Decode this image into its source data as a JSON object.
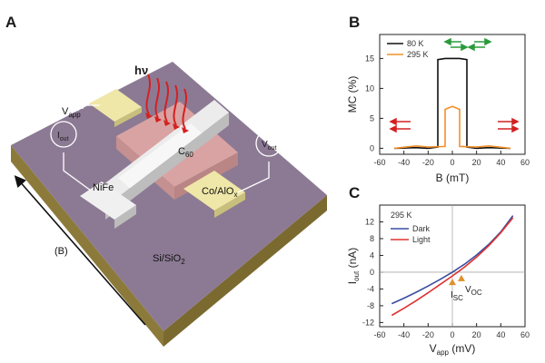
{
  "panels": {
    "a": {
      "letter": "A",
      "hv": "hν",
      "v_app": "V",
      "v_app_sub": "app",
      "i_out": "I",
      "i_out_sub": "out",
      "v_out": "V",
      "v_out_sub": "out",
      "c60": "C",
      "c60_sub": "60",
      "nife": "NiFe",
      "coalox": "Co/AlO",
      "coalox_sub": "x",
      "field": "(B)",
      "substrate": "Si/SiO",
      "substrate_sub": "2"
    },
    "b": {
      "letter": "B"
    },
    "c": {
      "letter": "C"
    }
  },
  "colors": {
    "substrate_top": "#8c7a94",
    "substrate_side": "#8c7a3a",
    "c60": "#d9a3a3",
    "pads": "#efe7a8",
    "nife": "#e6e6e6",
    "light_arrows": "#d42020",
    "black_series": "#111111",
    "orange_series": "#f0902a",
    "dark_series": "#3a4ea0",
    "light_series": "#e03030",
    "green_arrows": "#2a9a3a"
  },
  "chart_data": [
    {
      "type": "line",
      "panel": "B",
      "xlabel": "B (mT)",
      "ylabel": "MC (%)",
      "xlim": [
        -60,
        60
      ],
      "ylim": [
        -1,
        19
      ],
      "xticks": [
        -60,
        -40,
        -20,
        0,
        20,
        40,
        60
      ],
      "yticks": [
        0,
        5,
        10,
        15
      ],
      "series": [
        {
          "name": "80 K",
          "x": [
            -48,
            -30,
            -20,
            -12,
            -12,
            -6,
            6,
            12,
            12,
            20,
            30,
            48
          ],
          "y": [
            0,
            0.1,
            0,
            0.2,
            14.8,
            15,
            15,
            14.8,
            0.2,
            0,
            0.1,
            0
          ]
        },
        {
          "name": "295 K",
          "x": [
            -48,
            -30,
            -20,
            -6,
            -6,
            0,
            6,
            6,
            20,
            30,
            48
          ],
          "y": [
            0,
            0.4,
            0.2,
            0.3,
            6.5,
            7,
            6.5,
            0.3,
            0.2,
            0.4,
            0
          ]
        }
      ]
    },
    {
      "type": "line",
      "panel": "C",
      "annotation": "295 K",
      "xlabel": "V",
      "xlabel_sub": "app",
      "xlabel_unit": " (mV)",
      "ylabel": "I",
      "ylabel_sub": "out",
      "ylabel_unit": " (nA)",
      "xlim": [
        -60,
        60
      ],
      "ylim": [
        -13,
        16
      ],
      "xticks": [
        -60,
        -40,
        -20,
        0,
        20,
        40,
        60
      ],
      "yticks": [
        -12,
        -8,
        -4,
        0,
        4,
        8,
        12
      ],
      "markers": {
        "isc": "I",
        "isc_sub": "SC",
        "voc": "V",
        "voc_sub": "OC"
      },
      "series": [
        {
          "name": "Dark",
          "x": [
            -50,
            -40,
            -30,
            -20,
            -10,
            0,
            10,
            20,
            30,
            40,
            50
          ],
          "y": [
            -7.5,
            -6.2,
            -4.8,
            -3.3,
            -1.7,
            0,
            1.9,
            4.1,
            6.6,
            9.6,
            13.5
          ]
        },
        {
          "name": "Light",
          "x": [
            -50,
            -40,
            -30,
            -20,
            -10,
            0,
            10,
            20,
            30,
            40,
            50
          ],
          "y": [
            -10.3,
            -8.6,
            -6.8,
            -4.9,
            -2.9,
            -0.9,
            1.2,
            3.6,
            6.3,
            9.4,
            13.0
          ]
        }
      ]
    }
  ]
}
